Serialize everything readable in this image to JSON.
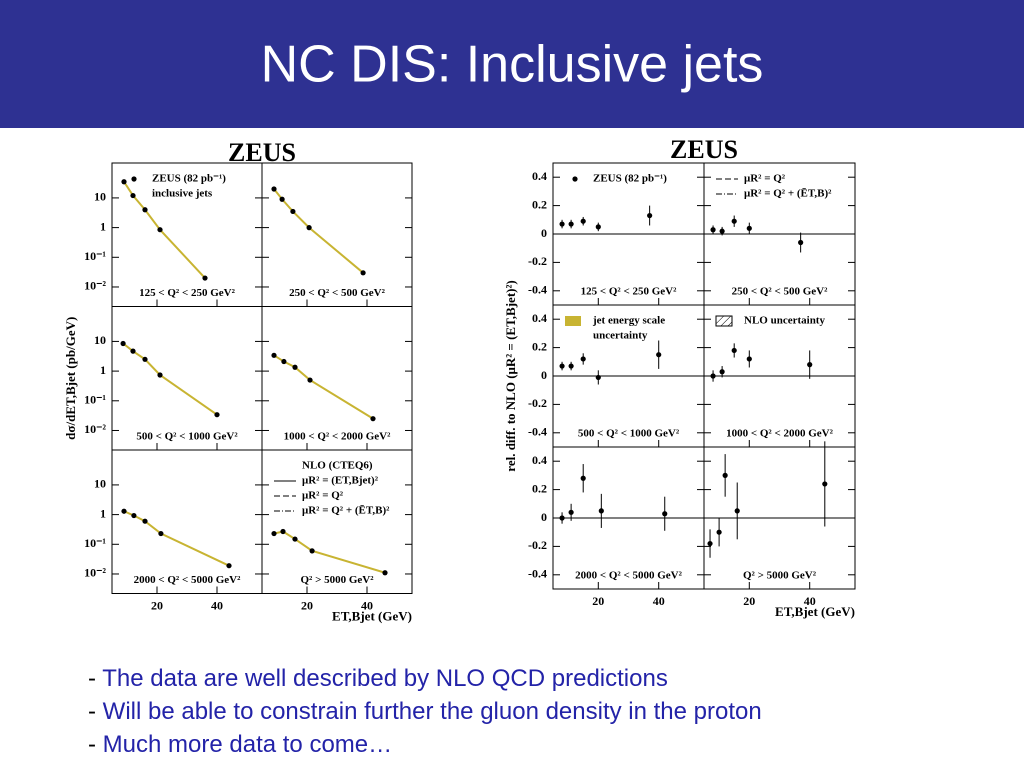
{
  "title": "NC DIS: Inclusive jets",
  "bullet_marker": "-",
  "bullets": [
    "The data are well described by NLO QCD predictions",
    "Will be able to constrain further the gluon density in the proton",
    "Much more data to come…"
  ],
  "chart_data": [
    {
      "type": "scatter",
      "title": "ZEUS",
      "y_label": "dσ/dET,Bjet (pb/GeV)",
      "x_label": "ET,Bjet (GeV)",
      "log_y": true,
      "connect": true,
      "color": "#000000",
      "line_color": "#c8b432",
      "xlim": [
        5,
        55
      ],
      "xticks": [
        20,
        40
      ],
      "ylim": [
        0.0022,
        150
      ],
      "yticks": [
        10,
        1,
        {
          "value": 0.1,
          "label": "10⁻¹"
        },
        {
          "value": 0.01,
          "label": "10⁻²"
        }
      ],
      "panels": [
        {
          "label": "125 < Q² < 250 GeV²",
          "x": [
            9,
            12,
            16,
            21,
            36
          ],
          "values": [
            35,
            12,
            4,
            0.85,
            0.02
          ],
          "legend": [
            {
              "text": "ZEUS (82 pb⁻¹)",
              "marker": "dot"
            },
            {
              "text": "inclusive jets",
              "marker": "none"
            }
          ]
        },
        {
          "label": "250 < Q² < 500 GeV²",
          "x": [
            9,
            11.7,
            15.3,
            20.7,
            38.7
          ],
          "values": [
            20,
            9,
            3.5,
            1,
            0.03
          ]
        },
        {
          "label": "500 < Q² < 1000 GeV²",
          "x": [
            8.7,
            12,
            16,
            21,
            40
          ],
          "values": [
            8.5,
            4.7,
            2.5,
            0.74,
            0.034
          ]
        },
        {
          "label": "1000 < Q² < 2000 GeV²",
          "x": [
            9,
            12.3,
            16,
            21,
            42
          ],
          "values": [
            3.4,
            2.1,
            1.35,
            0.5,
            0.025
          ]
        },
        {
          "label": "2000 < Q² < 5000 GeV²",
          "x": [
            9,
            12.3,
            16,
            21.3,
            44
          ],
          "values": [
            1.3,
            0.93,
            0.6,
            0.23,
            0.019
          ]
        },
        {
          "label": "Q² > 5000 GeV²",
          "x": [
            9,
            12,
            16,
            21.7,
            46
          ],
          "values": [
            0.23,
            0.27,
            0.15,
            0.06,
            0.011
          ],
          "legend": [
            {
              "text": "NLO (CTEQ6)",
              "marker": "none"
            },
            {
              "text": "μR² = (ET,Bjet)²",
              "marker": "solid"
            },
            {
              "text": "μR² = Q²",
              "marker": "dashed"
            },
            {
              "text": "μR² = Q² + (ĒT,B)²",
              "marker": "dashdot"
            }
          ]
        }
      ]
    },
    {
      "type": "scatter",
      "title": "ZEUS",
      "y_label": "rel. diff. to NLO (μR² = (ET,Bjet)²)",
      "x_label": "ET,Bjet (GeV)",
      "log_y": false,
      "connect": false,
      "zero_line": true,
      "color": "#000000",
      "xlim": [
        5,
        55
      ],
      "xticks": [
        20,
        40
      ],
      "ylim": [
        -0.5,
        0.5
      ],
      "yticks": [
        0.4,
        0.2,
        0,
        -0.2,
        -0.4
      ],
      "panels": [
        {
          "label": "125 < Q² < 250 GeV²",
          "x": [
            8,
            11,
            15,
            20,
            37
          ],
          "values": [
            0.07,
            0.07,
            0.09,
            0.05,
            0.13
          ],
          "errors": [
            0.03,
            0.03,
            0.03,
            0.03,
            0.07
          ],
          "legend": [
            {
              "text": "ZEUS (82 pb⁻¹)",
              "marker": "dot"
            }
          ]
        },
        {
          "label": "250 < Q² < 500 GeV²",
          "x": [
            8,
            11,
            15,
            20,
            37
          ],
          "values": [
            0.03,
            0.02,
            0.09,
            0.04,
            -0.06
          ],
          "errors": [
            0.03,
            0.03,
            0.04,
            0.04,
            0.07
          ],
          "legend": [
            {
              "text": "μR² = Q²",
              "marker": "dashed"
            },
            {
              "text": "μR² = Q² + (ĒT,B)²",
              "marker": "dashdot"
            }
          ]
        },
        {
          "label": "500 < Q² < 1000 GeV²",
          "x": [
            8,
            11,
            15,
            20,
            40
          ],
          "values": [
            0.07,
            0.07,
            0.12,
            -0.01,
            0.15
          ],
          "errors": [
            0.03,
            0.03,
            0.04,
            0.05,
            0.1
          ],
          "legend": [
            {
              "text": "jet energy scale",
              "marker": "band"
            },
            {
              "text": "uncertainty",
              "marker": "none"
            }
          ]
        },
        {
          "label": "1000 < Q² < 2000 GeV²",
          "x": [
            8,
            11,
            15,
            20,
            40
          ],
          "values": [
            0,
            0.03,
            0.18,
            0.12,
            0.08
          ],
          "errors": [
            0.04,
            0.04,
            0.05,
            0.06,
            0.1
          ],
          "legend": [
            {
              "text": "NLO uncertainty",
              "marker": "hatch"
            }
          ]
        },
        {
          "label": "2000 < Q² < 5000 GeV²",
          "x": [
            8,
            11,
            15,
            21,
            42
          ],
          "values": [
            0,
            0.04,
            0.28,
            0.05,
            0.03
          ],
          "errors": [
            0.04,
            0.06,
            0.1,
            0.12,
            0.12
          ]
        },
        {
          "label": "Q² > 5000 GeV²",
          "x": [
            7,
            10,
            12,
            16,
            45
          ],
          "values": [
            -0.18,
            -0.1,
            0.3,
            0.05,
            0.24
          ],
          "errors": [
            0.1,
            0.1,
            0.15,
            0.2,
            0.3
          ]
        }
      ]
    }
  ]
}
